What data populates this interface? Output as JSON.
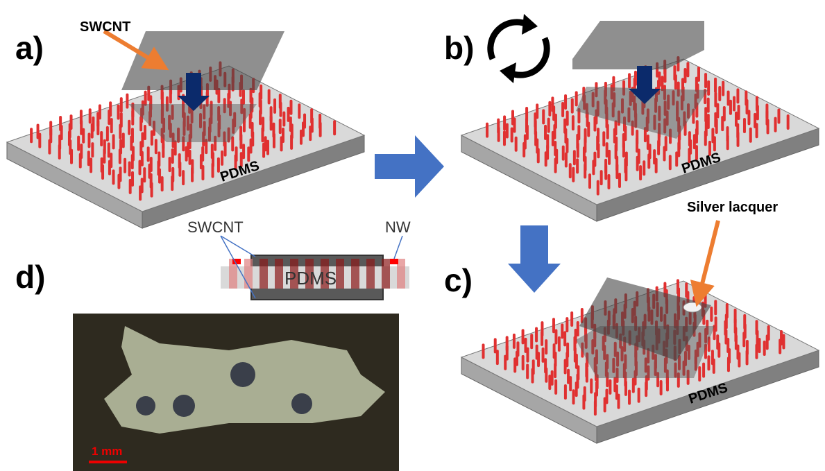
{
  "panels": [
    {
      "label": "a)",
      "substrate": "PDMS",
      "annotation": "SWCNT"
    },
    {
      "label": "b)",
      "substrate": "PDMS"
    },
    {
      "label": "c)",
      "substrate": "PDMS",
      "annotation": "Silver lacquer"
    },
    {
      "label": "d)",
      "cross_section": {
        "left": "SWCNT",
        "right": "NW",
        "substrate": "PDMS"
      },
      "scale_bar": "1 mm"
    }
  ]
}
